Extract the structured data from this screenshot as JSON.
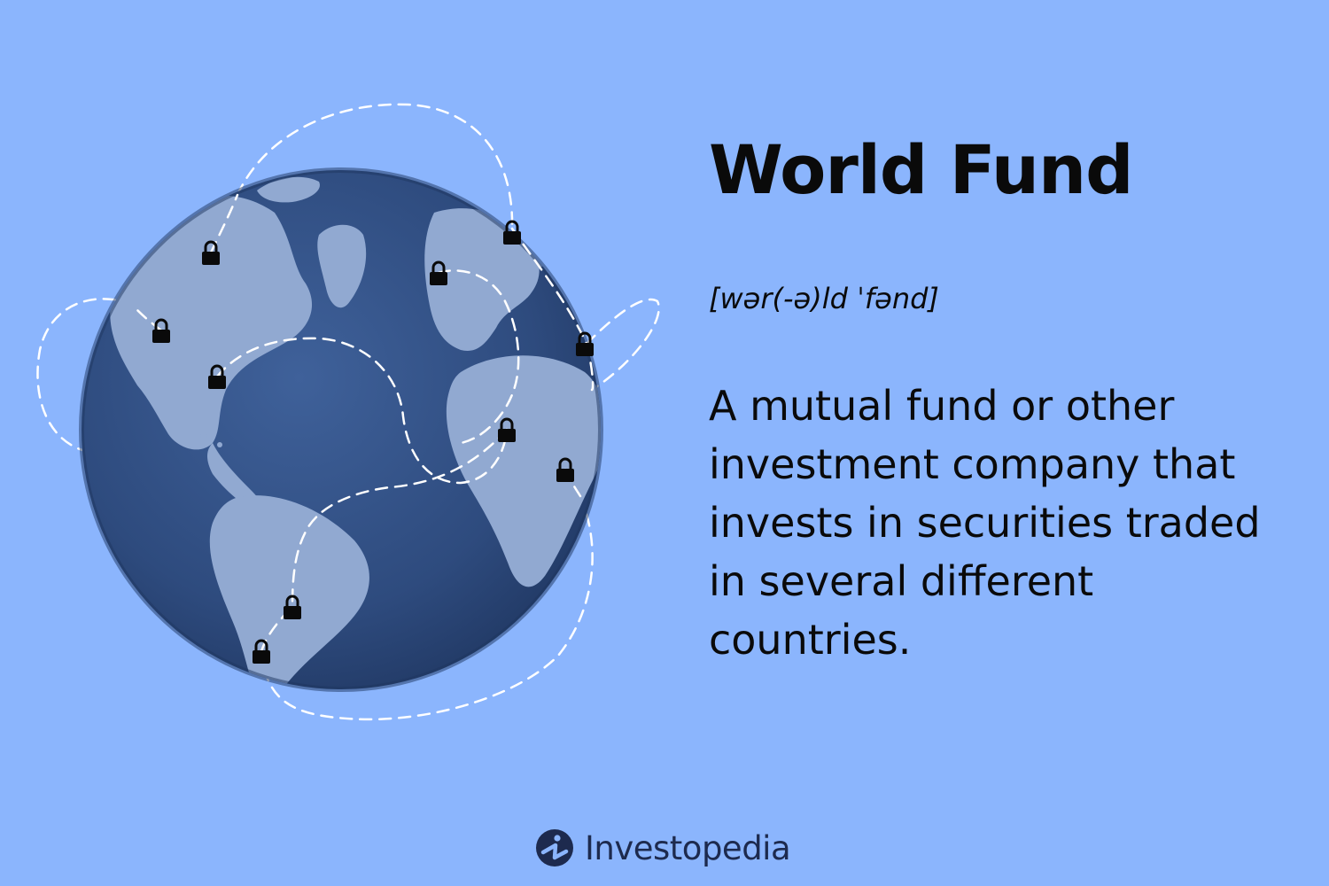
{
  "card": {
    "title": "World Fund",
    "pronunciation": "[wər(-ə)ld ˈfənd]",
    "definition": "A mutual fund or other investment company that invests in securities traded in several different countries."
  },
  "brand": {
    "name": "Investopedia",
    "logo_icon": "investopedia-logo-icon"
  },
  "illustration": {
    "subject": "globe-icon",
    "marker_icon": "padlock-icon",
    "colors": {
      "background": "#8bb5fd",
      "ocean": "#2e4b7e",
      "land": "#91a9d1",
      "marker": "#0a0a0a",
      "route": "#ffffff",
      "text": "#0a0a0a",
      "brand": "#1d2a4e"
    }
  }
}
